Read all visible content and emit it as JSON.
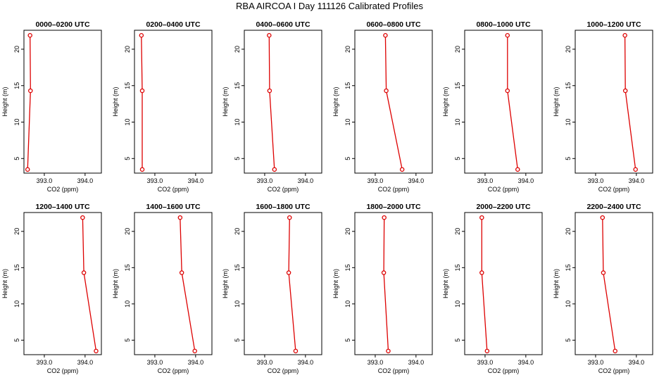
{
  "title": "RBA AIRCOA I  Day 111126  Calibrated Profiles",
  "colors": {
    "series": "#dd0000",
    "axis": "#000000",
    "background": "#ffffff"
  },
  "chart_data": {
    "type": "line",
    "title": "RBA AIRCOA I  Day 111126  Calibrated Profiles",
    "xlabel": "CO2 (ppm)",
    "ylabel": "Height (m)",
    "xlim": [
      392.5,
      394.4
    ],
    "ylim": [
      3,
      22.6
    ],
    "xticks": [
      393.0,
      394.0
    ],
    "xtick_labels": [
      "393.0",
      "394.0"
    ],
    "yticks": [
      5,
      10,
      15,
      20
    ],
    "ytick_labels": [
      "5",
      "10",
      "15",
      "20"
    ],
    "heights": [
      21.9,
      14.3,
      3.5
    ],
    "panels": [
      {
        "title": "0000–0200 UTC",
        "co2": [
          392.65,
          392.66,
          392.59
        ]
      },
      {
        "title": "0200–0400 UTC",
        "co2": [
          392.67,
          392.69,
          392.69
        ]
      },
      {
        "title": "0400–0600 UTC",
        "co2": [
          393.11,
          393.12,
          393.24
        ]
      },
      {
        "title": "0600–0800 UTC",
        "co2": [
          393.25,
          393.27,
          393.66
        ]
      },
      {
        "title": "0800–1000 UTC",
        "co2": [
          393.55,
          393.55,
          393.8
        ]
      },
      {
        "title": "1000–1200 UTC",
        "co2": [
          393.72,
          393.73,
          393.98
        ]
      },
      {
        "title": "1200–1400 UTC",
        "co2": [
          393.94,
          393.97,
          394.27
        ]
      },
      {
        "title": "1400–1600 UTC",
        "co2": [
          393.62,
          393.66,
          393.98
        ]
      },
      {
        "title": "1600–1800 UTC",
        "co2": [
          393.61,
          393.59,
          393.76
        ]
      },
      {
        "title": "1800–2000 UTC",
        "co2": [
          393.22,
          393.21,
          393.32
        ]
      },
      {
        "title": "2000–2200 UTC",
        "co2": [
          392.92,
          392.92,
          393.05
        ]
      },
      {
        "title": "2200–2400 UTC",
        "co2": [
          393.17,
          393.19,
          393.48
        ]
      }
    ]
  }
}
